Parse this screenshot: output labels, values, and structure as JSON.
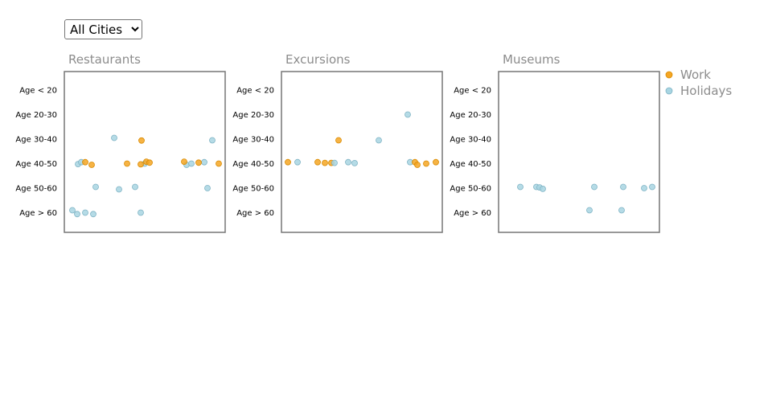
{
  "city_filter": {
    "selected": "All Cities",
    "options": [
      "All Cities"
    ]
  },
  "chart_data": {
    "type": "scatter",
    "y_categories": [
      "Age < 20",
      "Age 20-30",
      "Age 30-40",
      "Age 40-50",
      "Age 50-60",
      "Age > 60"
    ],
    "x_range": [
      0,
      1
    ],
    "grid": false,
    "legend_placement": "top-right",
    "series": [
      {
        "name": "Work",
        "color": "#f5a623"
      },
      {
        "name": "Holidays",
        "color": "#a8d5e2"
      }
    ],
    "panels": [
      {
        "title": "Restaurants",
        "points": [
          {
            "series": "Holidays",
            "x": 0.05,
            "age": "Age > 60",
            "jitter": -0.1
          },
          {
            "series": "Holidays",
            "x": 0.08,
            "age": "Age > 60",
            "jitter": 0.06
          },
          {
            "series": "Holidays",
            "x": 0.13,
            "age": "Age > 60",
            "jitter": 0.0
          },
          {
            "series": "Holidays",
            "x": 0.18,
            "age": "Age > 60",
            "jitter": 0.06
          },
          {
            "series": "Holidays",
            "x": 0.475,
            "age": "Age > 60",
            "jitter": 0.0
          },
          {
            "series": "Holidays",
            "x": 0.195,
            "age": "Age 50-60",
            "jitter": -0.05
          },
          {
            "series": "Holidays",
            "x": 0.34,
            "age": "Age 50-60",
            "jitter": 0.05
          },
          {
            "series": "Holidays",
            "x": 0.44,
            "age": "Age 50-60",
            "jitter": -0.05
          },
          {
            "series": "Holidays",
            "x": 0.89,
            "age": "Age 50-60",
            "jitter": 0.0
          },
          {
            "series": "Holidays",
            "x": 0.31,
            "age": "Age 30-40",
            "jitter": -0.05
          },
          {
            "series": "Holidays",
            "x": 0.92,
            "age": "Age 30-40",
            "jitter": 0.05
          },
          {
            "series": "Holidays",
            "x": 0.085,
            "age": "Age 40-50",
            "jitter": 0.02
          },
          {
            "series": "Holidays",
            "x": 0.105,
            "age": "Age 40-50",
            "jitter": -0.06
          },
          {
            "series": "Holidays",
            "x": 0.5,
            "age": "Age 40-50",
            "jitter": 0.0
          },
          {
            "series": "Holidays",
            "x": 0.76,
            "age": "Age 40-50",
            "jitter": 0.05
          },
          {
            "series": "Holidays",
            "x": 0.79,
            "age": "Age 40-50",
            "jitter": 0.0
          },
          {
            "series": "Holidays",
            "x": 0.87,
            "age": "Age 40-50",
            "jitter": -0.06
          },
          {
            "series": "Work",
            "x": 0.48,
            "age": "Age 30-40",
            "jitter": 0.06
          },
          {
            "series": "Work",
            "x": 0.13,
            "age": "Age 40-50",
            "jitter": -0.06
          },
          {
            "series": "Work",
            "x": 0.17,
            "age": "Age 40-50",
            "jitter": 0.05
          },
          {
            "series": "Work",
            "x": 0.39,
            "age": "Age 40-50",
            "jitter": 0.0
          },
          {
            "series": "Work",
            "x": 0.475,
            "age": "Age 40-50",
            "jitter": 0.03
          },
          {
            "series": "Work",
            "x": 0.51,
            "age": "Age 40-50",
            "jitter": -0.08
          },
          {
            "series": "Work",
            "x": 0.53,
            "age": "Age 40-50",
            "jitter": -0.04
          },
          {
            "series": "Work",
            "x": 0.745,
            "age": "Age 40-50",
            "jitter": -0.08
          },
          {
            "series": "Work",
            "x": 0.835,
            "age": "Age 40-50",
            "jitter": -0.04
          },
          {
            "series": "Work",
            "x": 0.96,
            "age": "Age 40-50",
            "jitter": 0.0
          }
        ]
      },
      {
        "title": "Excursions",
        "points": [
          {
            "series": "Work",
            "x": 0.04,
            "age": "Age 40-50",
            "jitter": -0.06
          },
          {
            "series": "Holidays",
            "x": 0.1,
            "age": "Age 40-50",
            "jitter": -0.06
          },
          {
            "series": "Work",
            "x": 0.225,
            "age": "Age 40-50",
            "jitter": -0.06
          },
          {
            "series": "Work",
            "x": 0.27,
            "age": "Age 40-50",
            "jitter": -0.03
          },
          {
            "series": "Work",
            "x": 0.31,
            "age": "Age 40-50",
            "jitter": -0.03
          },
          {
            "series": "Holidays",
            "x": 0.33,
            "age": "Age 40-50",
            "jitter": -0.03
          },
          {
            "series": "Holidays",
            "x": 0.415,
            "age": "Age 40-50",
            "jitter": -0.06
          },
          {
            "series": "Holidays",
            "x": 0.455,
            "age": "Age 40-50",
            "jitter": -0.02
          },
          {
            "series": "Holidays",
            "x": 0.8,
            "age": "Age 40-50",
            "jitter": -0.06
          },
          {
            "series": "Work",
            "x": 0.83,
            "age": "Age 40-50",
            "jitter": -0.06
          },
          {
            "series": "Work",
            "x": 0.845,
            "age": "Age 40-50",
            "jitter": 0.05
          },
          {
            "series": "Work",
            "x": 0.9,
            "age": "Age 40-50",
            "jitter": 0.0
          },
          {
            "series": "Work",
            "x": 0.96,
            "age": "Age 40-50",
            "jitter": -0.06
          },
          {
            "series": "Work",
            "x": 0.355,
            "age": "Age 30-40",
            "jitter": 0.05
          },
          {
            "series": "Holidays",
            "x": 0.605,
            "age": "Age 30-40",
            "jitter": 0.05
          },
          {
            "series": "Holidays",
            "x": 0.785,
            "age": "Age 20-30",
            "jitter": 0.0
          }
        ]
      },
      {
        "title": "Museums",
        "points": [
          {
            "series": "Holidays",
            "x": 0.135,
            "age": "Age 50-60",
            "jitter": -0.05
          },
          {
            "series": "Holidays",
            "x": 0.235,
            "age": "Age 50-60",
            "jitter": -0.05
          },
          {
            "series": "Holidays",
            "x": 0.255,
            "age": "Age 50-60",
            "jitter": -0.03
          },
          {
            "series": "Holidays",
            "x": 0.275,
            "age": "Age 50-60",
            "jitter": 0.03
          },
          {
            "series": "Holidays",
            "x": 0.595,
            "age": "Age 50-60",
            "jitter": -0.05
          },
          {
            "series": "Holidays",
            "x": 0.775,
            "age": "Age 50-60",
            "jitter": -0.05
          },
          {
            "series": "Holidays",
            "x": 0.905,
            "age": "Age 50-60",
            "jitter": 0.0
          },
          {
            "series": "Holidays",
            "x": 0.955,
            "age": "Age 50-60",
            "jitter": -0.05
          },
          {
            "series": "Holidays",
            "x": 0.565,
            "age": "Age > 60",
            "jitter": -0.1
          },
          {
            "series": "Holidays",
            "x": 0.765,
            "age": "Age > 60",
            "jitter": -0.1
          }
        ]
      }
    ]
  }
}
